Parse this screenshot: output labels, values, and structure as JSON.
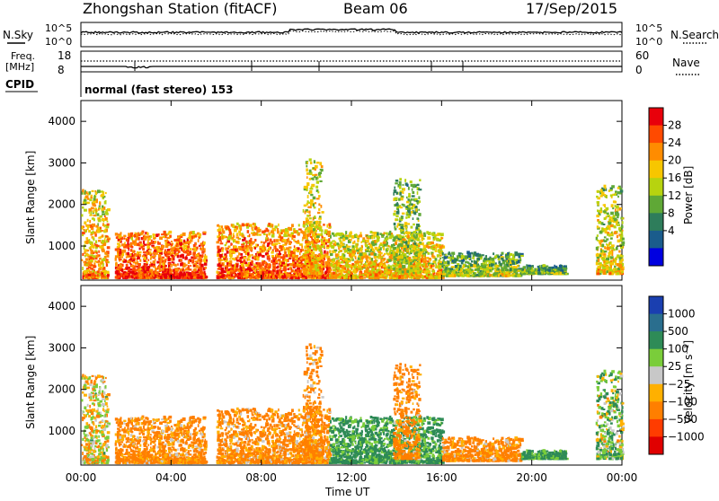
{
  "header": {
    "station": "Zhongshan Station (fitACF)",
    "beam": "Beam 06",
    "date": "17/Sep/2015"
  },
  "top_panels": {
    "nsky_label": "N.Sky",
    "nsky_ticks": [
      "10^5",
      "10^0"
    ],
    "nsearch_label": "N.Search",
    "nsearch_ticks": [
      "10^5",
      "10^0"
    ],
    "freq_label_1": "Freq.",
    "freq_label_2": "[MHz]",
    "freq_ticks": [
      "18",
      "8"
    ],
    "nave_label": "Nave",
    "nave_ticks": [
      "60",
      "0"
    ],
    "cpid_label": "CPID",
    "cpid_text": "normal (fast stereo) 153"
  },
  "axes": {
    "ylabel": "Slant Range [km]",
    "xlabel": "Time UT",
    "yticks": [
      "4000",
      "3000",
      "2000",
      "1000"
    ],
    "xticks": [
      "00:00",
      "04:00",
      "08:00",
      "12:00",
      "16:00",
      "20:00",
      "00:00"
    ]
  },
  "power_colorbar": {
    "label": "Power [dB]",
    "ticks": [
      "28",
      "24",
      "20",
      "16",
      "12",
      "8",
      "4"
    ],
    "colors": [
      "#e8000b",
      "#ff4a00",
      "#ff8c00",
      "#f7c600",
      "#b7d30f",
      "#5fa836",
      "#2e7d5b",
      "#1a5c8c",
      "#0000e0"
    ]
  },
  "velocity_colorbar": {
    "label": "Velocity [m s⁻¹]",
    "ticks": [
      "1000",
      "500",
      "100",
      "25",
      "−25",
      "−100",
      "−500",
      "−1000"
    ],
    "colors": [
      "#1a3fb0",
      "#2a6e8e",
      "#2e8b57",
      "#7acd3a",
      "#c8c8c8",
      "#ffb000",
      "#ff7f00",
      "#ff3c00",
      "#e00000"
    ]
  },
  "chart_data": {
    "type": "heatmap",
    "title": "Zhongshan Station (fitACF)",
    "xlabel": "Time UT",
    "ylabel": "Slant Range [km]",
    "xlim": [
      "00:00",
      "24:00"
    ],
    "ylim": [
      180,
      4500
    ],
    "panels": [
      "Power [dB]",
      "Velocity [m s-1]"
    ],
    "scatter_regions": [
      {
        "t_start": "00:00",
        "t_end": "01:10",
        "range_km": [
          200,
          2300
        ],
        "power_db": 18,
        "velocity": -25
      },
      {
        "t_start": "01:30",
        "t_end": "05:30",
        "range_km": [
          200,
          1300
        ],
        "power_db": 24,
        "velocity": -100
      },
      {
        "t_start": "06:00",
        "t_end": "11:00",
        "range_km": [
          200,
          1500
        ],
        "power_db": 22,
        "velocity": -100
      },
      {
        "t_start": "09:50",
        "t_end": "10:40",
        "range_km": [
          300,
          3100
        ],
        "power_db": 16,
        "velocity": -100
      },
      {
        "t_start": "11:00",
        "t_end": "16:00",
        "range_km": [
          200,
          1300
        ],
        "power_db": 16,
        "velocity": 100
      },
      {
        "t_start": "13:50",
        "t_end": "15:00",
        "range_km": [
          300,
          2600
        ],
        "power_db": 12,
        "velocity": -100
      },
      {
        "t_start": "16:00",
        "t_end": "19:30",
        "range_km": [
          250,
          800
        ],
        "power_db": 10,
        "velocity": -100
      },
      {
        "t_start": "19:30",
        "t_end": "21:30",
        "range_km": [
          300,
          500
        ],
        "power_db": 8,
        "velocity": 100
      },
      {
        "t_start": "22:50",
        "t_end": "24:00",
        "range_km": [
          300,
          2400
        ],
        "power_db": 14,
        "velocity": 25
      }
    ]
  }
}
